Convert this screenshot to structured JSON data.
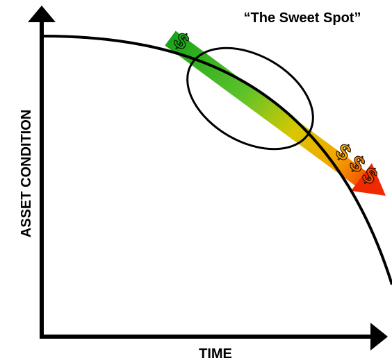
{
  "title": "“The Sweet Spot”",
  "y_axis_label": "ASSET CONDITION",
  "x_axis_label": "TIME",
  "symbols": [
    "$",
    "$",
    "$",
    "$"
  ]
}
